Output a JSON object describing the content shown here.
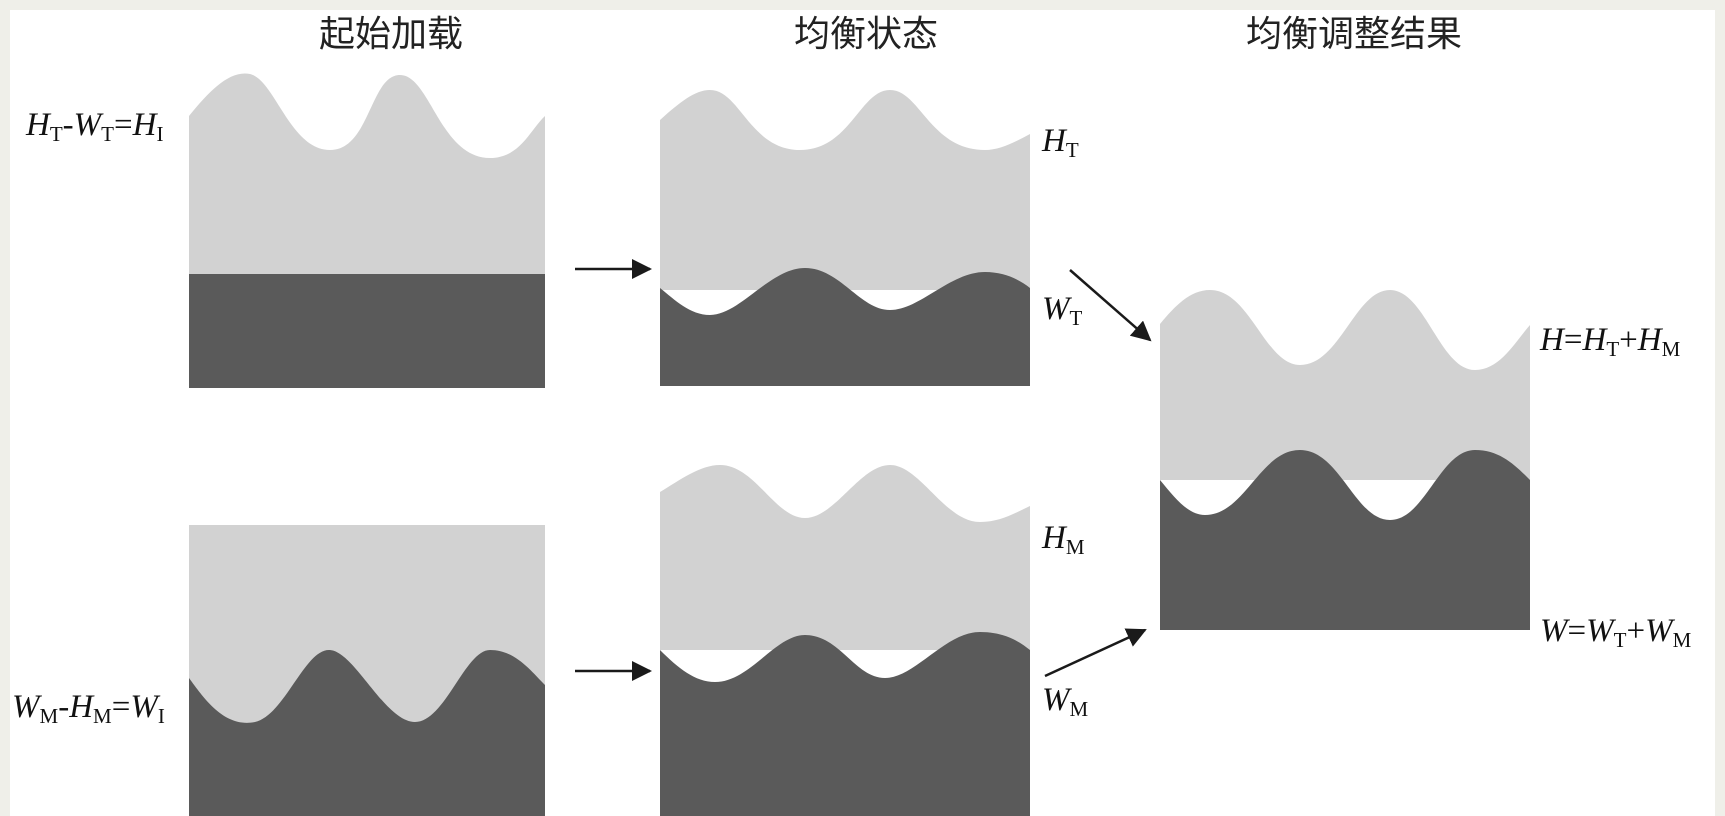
{
  "titles": {
    "initial": "起始加载",
    "equilibrium": "均衡状态",
    "adjusted": "均衡调整结果"
  },
  "labels": {
    "top_left": {
      "a": "H",
      "a_sub": "T",
      "op1": "-",
      "b": "W",
      "b_sub": "T",
      "op2": "=",
      "c": "H",
      "c_sub": "I"
    },
    "bottom_left": {
      "a": "W",
      "a_sub": "M",
      "op1": "-",
      "b": "H",
      "b_sub": "M",
      "op2": "=",
      "c": "W",
      "c_sub": "I"
    },
    "top_mid_upper": {
      "a": "H",
      "a_sub": "T"
    },
    "top_mid_lower": {
      "a": "W",
      "a_sub": "T"
    },
    "bottom_mid_upper": {
      "a": "H",
      "a_sub": "M"
    },
    "bottom_mid_lower": {
      "a": "W",
      "a_sub": "M"
    },
    "right_upper": {
      "a": "H",
      "op1": "=",
      "b": "H",
      "b_sub": "T",
      "op2": "+",
      "c": "H",
      "c_sub": "M"
    },
    "right_lower": {
      "a": "W",
      "op1": "=",
      "b": "W",
      "b_sub": "T",
      "op2": "+",
      "c": "W",
      "c_sub": "M"
    }
  },
  "colors": {
    "light_layer": "#d2d2d2",
    "dark_layer": "#5a5a5a",
    "arrow": "#1a1a1a",
    "background": "#ffffff"
  }
}
